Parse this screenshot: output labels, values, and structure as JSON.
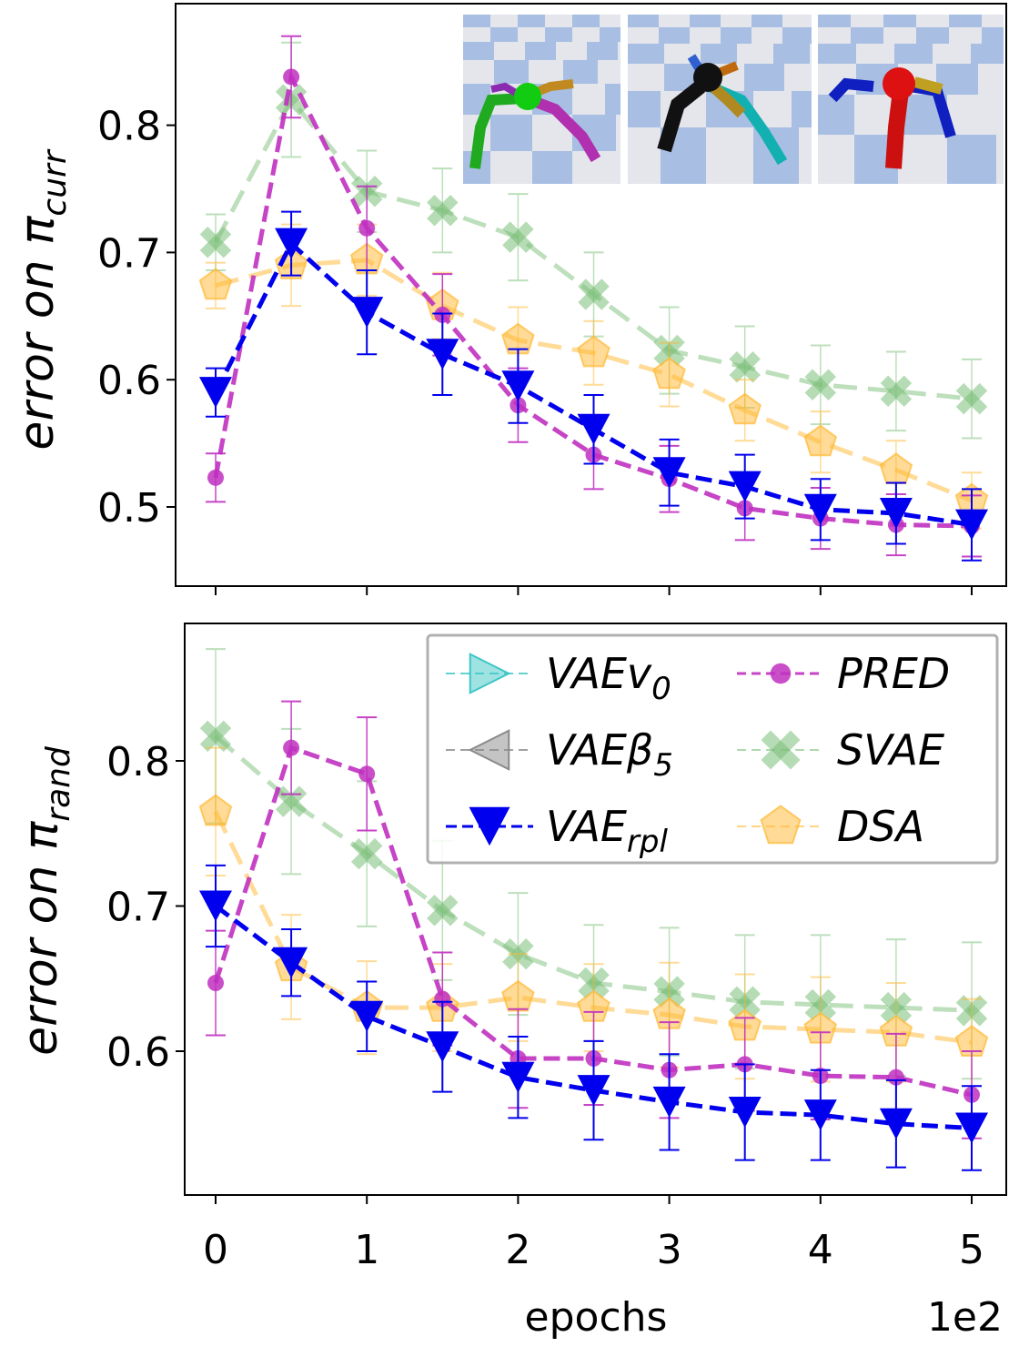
{
  "chart_data": [
    {
      "type": "line",
      "x": [
        0,
        0.5,
        1,
        1.5,
        2,
        2.5,
        3,
        3.5,
        4,
        4.5,
        5
      ],
      "ylim": [
        0.44,
        0.88
      ],
      "yticks": [
        0.5,
        0.6,
        0.7,
        0.8
      ],
      "ylabel": "error on π",
      "ylabel_sub": "curr",
      "grid": false,
      "inset_images": [
        "ant-robot-view-1",
        "ant-robot-view-2",
        "ant-robot-view-3"
      ],
      "series": [
        {
          "key": "svae",
          "values": [
            0.708,
            0.82,
            0.748,
            0.733,
            0.712,
            0.667,
            0.623,
            0.61,
            0.596,
            0.591,
            0.585
          ],
          "err": [
            0.022,
            0.045,
            0.032,
            0.033,
            0.034,
            0.033,
            0.034,
            0.032,
            0.031,
            0.031,
            0.031
          ]
        },
        {
          "key": "dsa",
          "values": [
            0.674,
            0.69,
            0.694,
            0.658,
            0.631,
            0.621,
            0.604,
            0.576,
            0.551,
            0.529,
            0.505
          ],
          "err": [
            0.018,
            0.032,
            0.028,
            0.026,
            0.026,
            0.025,
            0.025,
            0.024,
            0.024,
            0.023,
            0.022
          ]
        },
        {
          "key": "pred",
          "values": [
            0.523,
            0.838,
            0.719,
            0.651,
            0.58,
            0.541,
            0.522,
            0.499,
            0.491,
            0.486,
            0.485
          ],
          "err": [
            0.019,
            0.032,
            0.033,
            0.032,
            0.029,
            0.027,
            0.026,
            0.025,
            0.024,
            0.024,
            0.024
          ]
        },
        {
          "key": "rpl",
          "values": [
            0.59,
            0.707,
            0.653,
            0.62,
            0.595,
            0.561,
            0.527,
            0.516,
            0.498,
            0.495,
            0.486
          ],
          "err": [
            0.019,
            0.025,
            0.033,
            0.032,
            0.029,
            0.027,
            0.026,
            0.025,
            0.024,
            0.024,
            0.028
          ]
        }
      ]
    },
    {
      "type": "line",
      "x": [
        0,
        0.5,
        1,
        1.5,
        2,
        2.5,
        3,
        3.5,
        4,
        4.5,
        5
      ],
      "ylim": [
        0.505,
        0.89
      ],
      "yticks": [
        0.6,
        0.7,
        0.8
      ],
      "xticks": [
        "0",
        "1",
        "2",
        "3",
        "4",
        "5"
      ],
      "xlabel": "epochs",
      "x_offset_text": "1e2",
      "ylabel": "error on π",
      "ylabel_sub": "rand",
      "grid": false,
      "legend": {
        "placement": "upper-right",
        "entries": [
          {
            "key": "v0",
            "name": "VAEv",
            "sub": "0",
            "marker": "triangle-right",
            "color": "#3ec6c6"
          },
          {
            "key": "b5",
            "name": "VAEβ",
            "sub": "5",
            "marker": "triangle-left",
            "color": "#8a8a8a"
          },
          {
            "key": "rpl",
            "name": "VAE",
            "sub": "rpl",
            "marker": "triangle-down",
            "color": "#0000ee"
          },
          {
            "key": "pred",
            "name": "PRED",
            "sub": "",
            "marker": "circle",
            "color": "#c030c0"
          },
          {
            "key": "svae",
            "name": "SVAE",
            "sub": "",
            "marker": "x",
            "color": "#7cc07a"
          },
          {
            "key": "dsa",
            "name": "DSA",
            "sub": "",
            "marker": "pentagon",
            "color": "#ffb830"
          }
        ]
      },
      "series": [
        {
          "key": "svae",
          "values": [
            0.817,
            0.772,
            0.736,
            0.697,
            0.667,
            0.647,
            0.641,
            0.634,
            0.632,
            0.63,
            0.628
          ],
          "err": [
            0.06,
            0.05,
            0.05,
            0.048,
            0.042,
            0.04,
            0.044,
            0.046,
            0.048,
            0.047,
            0.047
          ]
        },
        {
          "key": "dsa",
          "values": [
            0.765,
            0.658,
            0.63,
            0.63,
            0.637,
            0.63,
            0.625,
            0.617,
            0.615,
            0.613,
            0.606
          ],
          "err": [
            0.044,
            0.036,
            0.032,
            0.03,
            0.03,
            0.03,
            0.036,
            0.036,
            0.036,
            0.034,
            0.03
          ]
        },
        {
          "key": "pred",
          "values": [
            0.647,
            0.809,
            0.791,
            0.636,
            0.595,
            0.595,
            0.587,
            0.591,
            0.583,
            0.582,
            0.57
          ],
          "err": [
            0.036,
            0.032,
            0.039,
            0.032,
            0.034,
            0.032,
            0.033,
            0.032,
            0.03,
            0.03,
            0.03
          ]
        },
        {
          "key": "rpl",
          "values": [
            0.7,
            0.661,
            0.624,
            0.603,
            0.582,
            0.573,
            0.565,
            0.558,
            0.556,
            0.55,
            0.547
          ],
          "err": [
            0.028,
            0.023,
            0.024,
            0.031,
            0.028,
            0.034,
            0.033,
            0.033,
            0.031,
            0.03,
            0.029
          ]
        }
      ]
    }
  ],
  "style": {
    "svae": "#7cc07a",
    "dsa": "#ffb830",
    "pred": "#c030c0",
    "rpl": "#0000ee"
  }
}
